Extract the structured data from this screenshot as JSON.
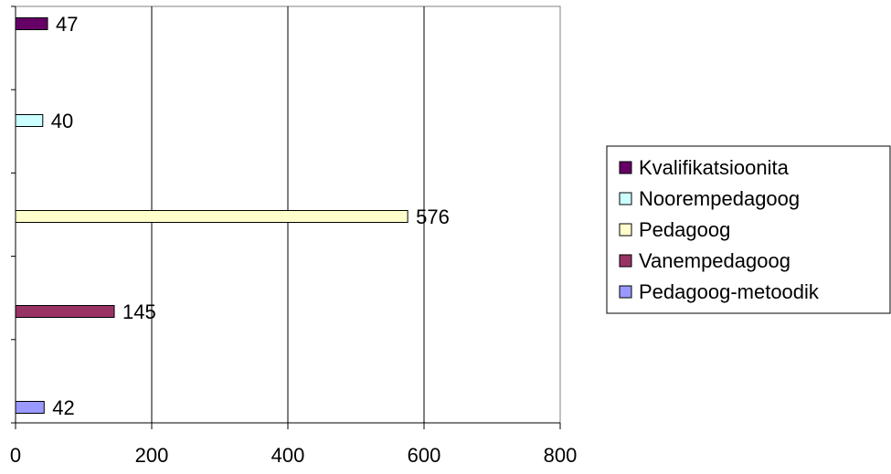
{
  "chart_data": {
    "type": "bar",
    "orientation": "horizontal",
    "title": "",
    "xlabel": "",
    "ylabel": "",
    "xlim": [
      0,
      800
    ],
    "xticks": [
      0,
      200,
      400,
      600,
      800
    ],
    "grid": "vertical",
    "legend_position": "right",
    "series": [
      {
        "name": "Kvalifikatsioonita",
        "value": 47,
        "color": "#660066"
      },
      {
        "name": "Noorempedagoog",
        "value": 40,
        "color": "#ccffff"
      },
      {
        "name": "Pedagoog",
        "value": 576,
        "color": "#ffffcc"
      },
      {
        "name": "Vanempedagoog",
        "value": 145,
        "color": "#993366"
      },
      {
        "name": "Pedagoog-metoodik",
        "value": 42,
        "color": "#9999ff"
      }
    ]
  }
}
